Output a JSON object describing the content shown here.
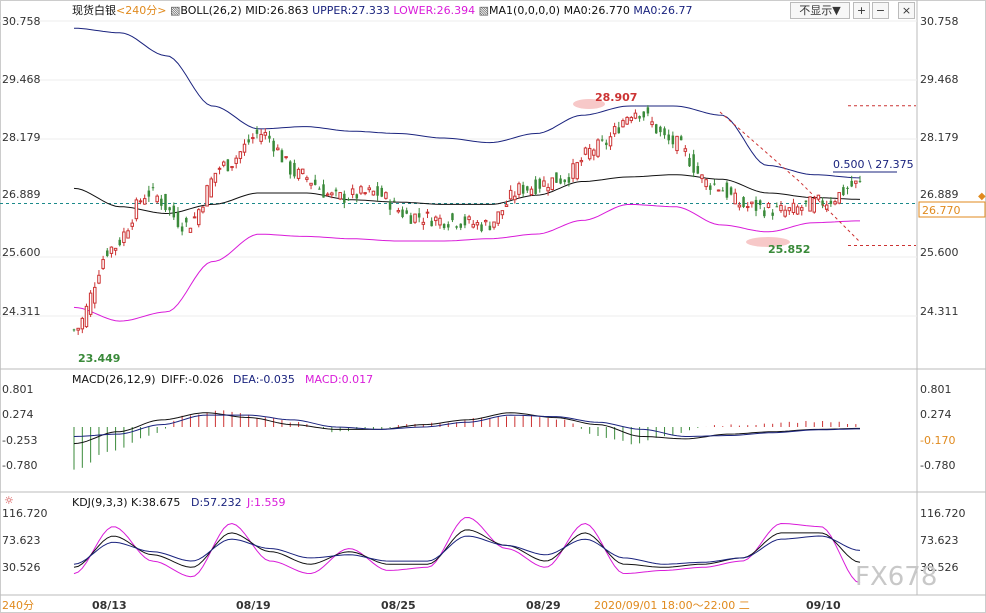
{
  "instrument": "现货白银",
  "period": "<240分>",
  "boll": {
    "label": "BOLL(26,2)",
    "mid": "MID:26.863",
    "upper": "UPPER:27.333",
    "lower": "LOWER:26.394"
  },
  "ma": {
    "label": "MA1(0,0,0,0)",
    "ma0": "MA0:26.770",
    "ma0b": "MA0:26.77"
  },
  "toolbar": {
    "hide_label": "不显示▼",
    "add": "+",
    "minus": "−",
    "close": "×"
  },
  "main_axis": {
    "ticks": [
      "30.758",
      "29.468",
      "28.179",
      "26.889",
      "25.600",
      "24.311"
    ],
    "current": "26.770",
    "ymin": 23.0,
    "ymax": 31.0
  },
  "annotations": {
    "high": "28.907",
    "low": "25.852",
    "start_low": "23.449",
    "fib": "0.500 \\ 27.375"
  },
  "macd": {
    "label": "MACD(26,12,9)",
    "diff": "DIFF:-0.026",
    "dea": "DEA:-0.035",
    "macd": "MACD:0.017",
    "ticks": [
      "0.801",
      "0.274",
      "-0.253",
      "-0.780"
    ],
    "current": "-0.170"
  },
  "kdj": {
    "label": "KDJ(9,3,3)",
    "k": "K:38.675",
    "d": "D:57.232",
    "j": "J:1.559",
    "ticks": [
      "116.720",
      "73.623",
      "30.526"
    ]
  },
  "x_axis": {
    "period_label": "240分",
    "dates": [
      "08/13",
      "08/19",
      "08/25",
      "08/29",
      "09/10"
    ],
    "cursor": "2020/09/01 18:00～22:00 二"
  },
  "watermark": "FX678",
  "colors": {
    "up": "#cc3333",
    "down": "#3a8a3a",
    "upper": "#1a237e",
    "mid": "#111111",
    "lower": "#d91bd9",
    "diff": "#111111",
    "dea": "#1a237e",
    "jline": "#d91bd9"
  },
  "chart_data": [
    {
      "type": "line",
      "title": "BOLL(26,2)",
      "x": [
        "08/13",
        "08/19",
        "08/25",
        "08/29",
        "09/01",
        "09/10"
      ],
      "series": [
        {
          "name": "UPPER",
          "values": [
            30.6,
            28.4,
            27.9,
            28.8,
            28.7,
            27.33
          ]
        },
        {
          "name": "MID",
          "values": [
            27.1,
            26.7,
            26.8,
            27.3,
            27.4,
            26.86
          ]
        },
        {
          "name": "LOWER",
          "values": [
            24.6,
            26.1,
            26.0,
            26.1,
            26.8,
            26.39
          ]
        }
      ],
      "candles": {
        "high": 28.907,
        "low": 25.852,
        "start_low": 23.449,
        "last": 26.77
      },
      "ylim": [
        23.0,
        31.0
      ]
    },
    {
      "type": "bar",
      "title": "MACD(26,12,9)",
      "series": [
        {
          "name": "DIFF",
          "last": -0.026
        },
        {
          "name": "DEA",
          "last": -0.035
        },
        {
          "name": "MACD",
          "last": 0.017
        }
      ]
    },
    {
      "type": "line",
      "title": "KDJ(9,3,3)",
      "series": [
        {
          "name": "K",
          "last": 38.675
        },
        {
          "name": "D",
          "last": 57.232
        },
        {
          "name": "J",
          "last": 1.559
        }
      ]
    }
  ]
}
